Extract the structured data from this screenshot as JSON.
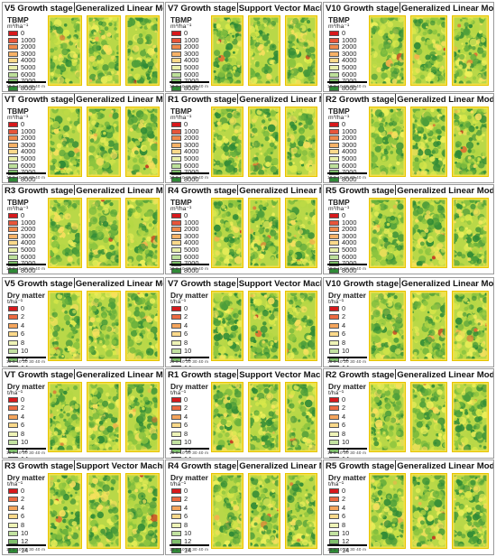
{
  "panels": [
    {
      "stage": "V5 Growth stage",
      "model": "Generalized Linear Model",
      "variable": "tbmp"
    },
    {
      "stage": "V7 Growth stage",
      "model": "Support Vector Machine",
      "variable": "tbmp"
    },
    {
      "stage": "V10 Growth stage",
      "model": "Generalized Linear Model",
      "variable": "tbmp"
    },
    {
      "stage": "VT Growth stage",
      "model": "Generalized Linear Model",
      "variable": "tbmp"
    },
    {
      "stage": "R1 Growth stage",
      "model": "Generalized Linear Model",
      "variable": "tbmp"
    },
    {
      "stage": "R2 Growth stage",
      "model": "Generalized Linear Model",
      "variable": "tbmp"
    },
    {
      "stage": "R3 Growth stage",
      "model": "Generalized Linear Model",
      "variable": "tbmp"
    },
    {
      "stage": "R4 Growth stage",
      "model": "Generalized Linear Model",
      "variable": "tbmp"
    },
    {
      "stage": "R5 Growth stage",
      "model": "Generalized Linear Model",
      "variable": "tbmp"
    },
    {
      "stage": "V5 Growth stage",
      "model": "Generalized Linear Model",
      "variable": "dry"
    },
    {
      "stage": "V7 Growth stage",
      "model": "Support Vector Machine",
      "variable": "dry"
    },
    {
      "stage": "V10 Growth stage",
      "model": "Generalized Linear Model",
      "variable": "dry"
    },
    {
      "stage": "VT Growth stage",
      "model": "Generalized Linear Model",
      "variable": "dry"
    },
    {
      "stage": "R1 Growth stage",
      "model": "Support Vector Machine",
      "variable": "dry"
    },
    {
      "stage": "R2 Growth stage",
      "model": "Generalized Linear Model",
      "variable": "dry"
    },
    {
      "stage": "R3 Growth stage",
      "model": "Support Vector Machine",
      "variable": "dry"
    },
    {
      "stage": "R4 Growth stage",
      "model": "Generalized Linear Model",
      "variable": "dry"
    },
    {
      "stage": "R5 Growth stage",
      "model": "Generalized Linear Model",
      "variable": "dry"
    }
  ],
  "legends": {
    "tbmp": {
      "title": "TBMP",
      "unit": "m³/ha⁻¹",
      "labels": [
        "0",
        "1000",
        "2000",
        "3000",
        "4000",
        "5000",
        "6000",
        "7000",
        "8000"
      ],
      "colors": [
        "#d7191c",
        "#e7553a",
        "#f08a4b",
        "#f7b267",
        "#fbd98a",
        "#e8efaa",
        "#bde09a",
        "#7fc06c",
        "#2f8a36"
      ]
    },
    "dry": {
      "title": "Dry matter",
      "unit": "t/ha⁻¹",
      "labels": [
        "0",
        "2",
        "4",
        "6",
        "8",
        "10",
        "12",
        "14"
      ],
      "colors": [
        "#d7191c",
        "#ec6a41",
        "#f5a55c",
        "#fbd98a",
        "#eef3b6",
        "#c2e2a0",
        "#7fc06c",
        "#2f8a36"
      ]
    }
  },
  "scale_bar": {
    "ticks": "10  0  10 20 30 40 m"
  }
}
